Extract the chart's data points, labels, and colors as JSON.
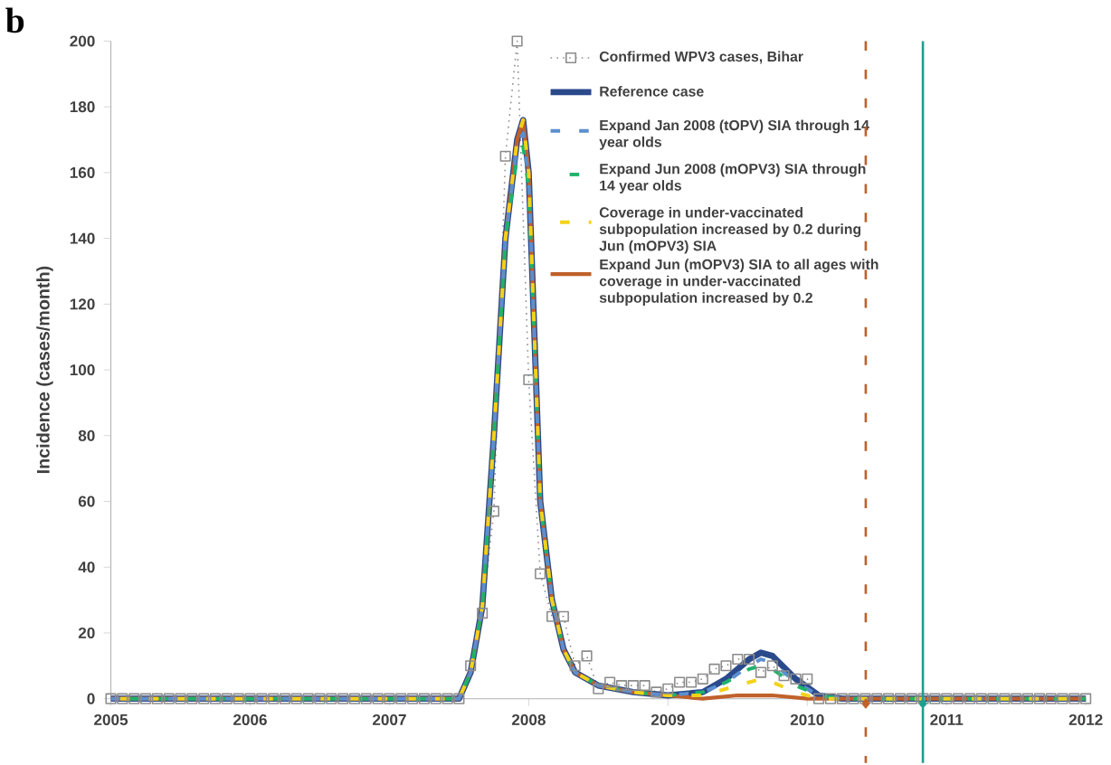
{
  "chart_data": {
    "type": "line",
    "ylabel": "Incidence (cases/month)",
    "annotations": [
      "b"
    ],
    "xlim": [
      2005,
      2012
    ],
    "ylim": [
      0,
      200
    ],
    "xticks": [
      2005,
      2006,
      2007,
      2008,
      2009,
      2010,
      2011,
      2012
    ],
    "yticks": [
      0,
      20,
      40,
      60,
      80,
      100,
      120,
      140,
      160,
      180,
      200
    ],
    "grid": false,
    "legend": "top right",
    "series": [
      {
        "name": "Confirmed WPV3 cases, Bihar",
        "color": "#8c8c8c",
        "marker": "square",
        "line_style": "dotted",
        "x": [
          2005.0,
          2005.083,
          2005.167,
          2005.25,
          2005.333,
          2005.417,
          2005.5,
          2005.583,
          2005.667,
          2005.75,
          2005.833,
          2005.917,
          2006.0,
          2006.083,
          2006.167,
          2006.25,
          2006.333,
          2006.417,
          2006.5,
          2006.583,
          2006.667,
          2006.75,
          2006.833,
          2006.917,
          2007.0,
          2007.083,
          2007.167,
          2007.25,
          2007.333,
          2007.417,
          2007.5,
          2007.583,
          2007.667,
          2007.75,
          2007.833,
          2007.917,
          2008.0,
          2008.083,
          2008.167,
          2008.25,
          2008.333,
          2008.417,
          2008.5,
          2008.583,
          2008.667,
          2008.75,
          2008.833,
          2008.917,
          2009.0,
          2009.083,
          2009.167,
          2009.25,
          2009.333,
          2009.417,
          2009.5,
          2009.583,
          2009.667,
          2009.75,
          2009.833,
          2009.917,
          2010.0,
          2010.083,
          2010.167,
          2010.25,
          2010.333,
          2010.417,
          2010.5,
          2010.583,
          2010.667,
          2010.75,
          2010.833,
          2010.917,
          2011.0,
          2011.083,
          2011.167,
          2011.25,
          2011.333,
          2011.417,
          2011.5,
          2011.583,
          2011.667,
          2011.75,
          2011.833,
          2011.917,
          2012.0
        ],
        "values": [
          0,
          0,
          0,
          0,
          0,
          0,
          0,
          0,
          0,
          0,
          0,
          0,
          0,
          0,
          0,
          0,
          0,
          0,
          0,
          0,
          0,
          0,
          0,
          0,
          0,
          0,
          0,
          0,
          0,
          0,
          0,
          10,
          26,
          57,
          165,
          200,
          97,
          38,
          25,
          25,
          10,
          13,
          3,
          5,
          4,
          4,
          4,
          2,
          3,
          5,
          5,
          6,
          9,
          10,
          12,
          12,
          8,
          10,
          7,
          6,
          6,
          0,
          0,
          0,
          0,
          0,
          0,
          0,
          0,
          0,
          0,
          0,
          0,
          0,
          0,
          0,
          0,
          0,
          0,
          0,
          0,
          0,
          0,
          0,
          0
        ]
      },
      {
        "name": "Reference case",
        "color": "#2b4a8b",
        "line_style": "solid",
        "x": [
          2005.0,
          2007.5,
          2007.583,
          2007.667,
          2007.75,
          2007.833,
          2007.917,
          2007.96,
          2008.0,
          2008.083,
          2008.167,
          2008.25,
          2008.333,
          2008.5,
          2008.75,
          2009.0,
          2009.25,
          2009.417,
          2009.583,
          2009.667,
          2009.75,
          2009.917,
          2010.083,
          2010.25,
          2012.0
        ],
        "values": [
          0,
          0,
          8,
          28,
          80,
          140,
          170,
          176,
          160,
          60,
          30,
          15,
          8,
          4,
          2,
          1,
          2,
          6,
          12,
          14,
          13,
          6,
          1,
          0,
          0
        ]
      },
      {
        "name": "Expand Jan 2008 (tOPV) SIA through 14 year olds",
        "color": "#5b8fd0",
        "line_style": "dashed",
        "x": [
          2005.0,
          2007.5,
          2007.583,
          2007.667,
          2007.75,
          2007.833,
          2007.917,
          2007.96,
          2008.0,
          2008.083,
          2008.167,
          2008.25,
          2008.333,
          2008.5,
          2008.75,
          2009.0,
          2009.25,
          2009.417,
          2009.583,
          2009.667,
          2009.75,
          2009.917,
          2010.083,
          2010.25,
          2012.0
        ],
        "values": [
          0,
          0,
          8,
          28,
          80,
          140,
          168,
          172,
          158,
          60,
          30,
          15,
          8,
          4,
          2,
          1,
          2,
          5,
          10,
          12,
          11,
          5,
          1,
          0,
          0
        ]
      },
      {
        "name": "Expand Jun 2008 (mOPV3) SIA through 14 year olds",
        "color": "#1db36b",
        "line_style": "dashed",
        "x": [
          2005.0,
          2007.5,
          2007.583,
          2007.667,
          2007.75,
          2007.833,
          2007.917,
          2007.96,
          2008.0,
          2008.083,
          2008.167,
          2008.25,
          2008.333,
          2008.5,
          2008.75,
          2009.0,
          2009.25,
          2009.417,
          2009.583,
          2009.667,
          2009.75,
          2009.917,
          2010.083,
          2010.25,
          2012.0
        ],
        "values": [
          0,
          0,
          8,
          28,
          80,
          140,
          165,
          168,
          155,
          60,
          30,
          15,
          8,
          4,
          2,
          1,
          2,
          5,
          9,
          10,
          9,
          4,
          1,
          0,
          0
        ]
      },
      {
        "name": "Coverage in under-vaccinated subpopulation increased by 0.2 during Jun (mOPV3) SIA",
        "color": "#f2d21b",
        "line_style": "dashed",
        "x": [
          2005.0,
          2007.5,
          2007.583,
          2007.667,
          2007.75,
          2007.833,
          2007.917,
          2007.96,
          2008.0,
          2008.083,
          2008.167,
          2008.25,
          2008.333,
          2008.5,
          2008.75,
          2009.0,
          2009.25,
          2009.417,
          2009.583,
          2009.667,
          2009.75,
          2009.917,
          2010.083,
          2010.25,
          2012.0
        ],
        "values": [
          0,
          0,
          8,
          28,
          80,
          140,
          170,
          176,
          160,
          60,
          30,
          15,
          8,
          4,
          2,
          1,
          1,
          3,
          5,
          6,
          5,
          2,
          0,
          0,
          0
        ]
      },
      {
        "name": "Expand Jun (mOPV3) SIA to all ages with coverage in under-vaccinated subpopulation increased by 0.2",
        "color": "#c0602a",
        "line_style": "solid",
        "x": [
          2005.0,
          2007.5,
          2007.583,
          2007.667,
          2007.75,
          2007.833,
          2007.917,
          2007.96,
          2008.0,
          2008.083,
          2008.167,
          2008.25,
          2008.333,
          2008.5,
          2008.75,
          2009.0,
          2009.25,
          2009.5,
          2009.75,
          2010.0,
          2012.0
        ],
        "values": [
          0,
          0,
          8,
          28,
          80,
          140,
          170,
          176,
          160,
          60,
          30,
          15,
          8,
          4,
          2,
          1,
          0,
          1,
          1,
          0,
          0
        ]
      }
    ],
    "ref_lines": [
      {
        "axis": "x",
        "value": 2010.42,
        "color": "#c0602a",
        "line_style": "dashed"
      },
      {
        "axis": "x",
        "value": 2010.83,
        "color": "#1e9e8e",
        "line_style": "solid"
      }
    ]
  }
}
